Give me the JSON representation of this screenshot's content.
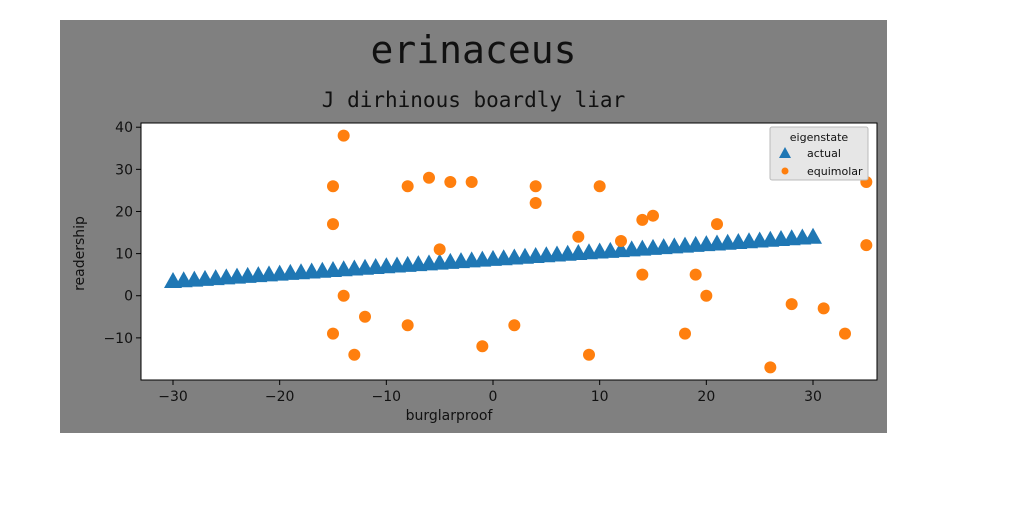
{
  "figure": {
    "title": "erinaceus",
    "subtitle": "J dirhinous boardly liar",
    "background": "#808080"
  },
  "chart_data": {
    "type": "scatter",
    "xlabel": "burglarproof",
    "ylabel": "readership",
    "xlim": [
      -33,
      36
    ],
    "ylim": [
      -20,
      41
    ],
    "xticks": [
      -30,
      -20,
      -10,
      0,
      10,
      20,
      30
    ],
    "yticks": [
      -10,
      0,
      10,
      20,
      30,
      40
    ],
    "grid": false,
    "legend": {
      "title": "eigenstate",
      "placement": "top-right"
    },
    "series": [
      {
        "name": "actual",
        "marker": "triangle",
        "color": "#1f77b4",
        "x_range": [
          -30,
          30
        ],
        "x_step": 1,
        "y_line": {
          "slope": 0.175,
          "intercept": 8.5
        }
      },
      {
        "name": "equimolar",
        "marker": "circle",
        "color": "#ff7f0e",
        "points": [
          [
            -14,
            38
          ],
          [
            -15,
            26
          ],
          [
            -15,
            17
          ],
          [
            -14,
            0
          ],
          [
            -15,
            -9
          ],
          [
            -13,
            -14
          ],
          [
            -12,
            -5
          ],
          [
            -8,
            26
          ],
          [
            -8,
            -7
          ],
          [
            -6,
            28
          ],
          [
            -5,
            11
          ],
          [
            -4,
            27
          ],
          [
            -2,
            27
          ],
          [
            -1,
            -12
          ],
          [
            2,
            -7
          ],
          [
            4,
            26
          ],
          [
            4,
            22
          ],
          [
            8,
            14
          ],
          [
            9,
            -14
          ],
          [
            10,
            26
          ],
          [
            12,
            13
          ],
          [
            14,
            18
          ],
          [
            14,
            5
          ],
          [
            15,
            19
          ],
          [
            18,
            -9
          ],
          [
            19,
            5
          ],
          [
            20,
            0
          ],
          [
            21,
            17
          ],
          [
            26,
            -17
          ],
          [
            28,
            -2
          ],
          [
            31,
            -3
          ],
          [
            33,
            -9
          ],
          [
            35,
            27
          ],
          [
            35,
            12
          ]
        ]
      }
    ]
  }
}
